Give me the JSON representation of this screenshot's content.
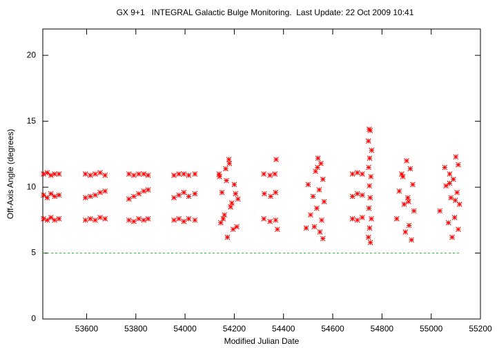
{
  "chart_data": {
    "type": "scatter",
    "title": "GX 9+1   INTEGRAL Galactic Bulge Monitoring.  Last Update: 22 Oct 2009 10:41",
    "x_label": "Modified Julian Date",
    "y_label": "Off-Axis Angle (degrees)",
    "xlim": [
      53422,
      55200
    ],
    "ylim": [
      0,
      22
    ],
    "xticks": [
      53600,
      53800,
      54000,
      54200,
      54400,
      54600,
      54800,
      55000,
      55200
    ],
    "yticks": [
      0,
      5,
      10,
      15,
      20
    ],
    "color": "#ff0000",
    "reference_line": {
      "y": 5,
      "color": "#00c000"
    },
    "x": [
      53425,
      53440,
      53455,
      53470,
      53488,
      53425,
      53440,
      53455,
      53470,
      53488,
      53425,
      53440,
      53455,
      53470,
      53488,
      53595,
      53615,
      53635,
      53655,
      53675,
      53595,
      53615,
      53635,
      53655,
      53675,
      53595,
      53615,
      53635,
      53655,
      53675,
      53772,
      53792,
      53812,
      53832,
      53850,
      53772,
      53792,
      53812,
      53832,
      53850,
      53772,
      53792,
      53812,
      53832,
      53850,
      53955,
      53975,
      53995,
      54015,
      54040,
      53955,
      53975,
      53995,
      54015,
      54040,
      53955,
      53975,
      53995,
      54015,
      54040,
      54178,
      54165,
      54140,
      54200,
      54150,
      54215,
      54185,
      54160,
      54145,
      54195,
      54172,
      54138,
      54205,
      54155,
      54190,
      54168,
      54210,
      54180,
      54370,
      54320,
      54345,
      54365,
      54322,
      54348,
      54368,
      54320,
      54345,
      54368,
      54375,
      54540,
      54552,
      54530,
      54560,
      54500,
      54545,
      54520,
      54565,
      54535,
      54510,
      54555,
      54525,
      54548,
      54492,
      54560,
      54538,
      54680,
      54700,
      54720,
      54680,
      54700,
      54720,
      54680,
      54700,
      54720,
      54748,
      54752,
      54745,
      54758,
      54750,
      54746,
      54755,
      54749,
      54752,
      54747,
      54757,
      54750,
      54745,
      54753,
      54900,
      54915,
      54885,
      54925,
      54870,
      54905,
      54890,
      54930,
      54860,
      54910,
      54895,
      54920,
      54880,
      54908,
      55100,
      55110,
      55075,
      55090,
      55060,
      55105,
      55080,
      55115,
      55035,
      55095,
      55070,
      55110,
      55085,
      55055,
      55098,
      55075
    ],
    "values": [
      11.0,
      11.1,
      10.9,
      11.0,
      11.0,
      9.4,
      9.2,
      9.5,
      9.3,
      9.4,
      7.6,
      7.5,
      7.7,
      7.5,
      7.6,
      11.0,
      10.9,
      11.0,
      11.1,
      10.9,
      9.2,
      9.3,
      9.4,
      9.6,
      9.7,
      7.5,
      7.6,
      7.5,
      7.7,
      7.6,
      11.0,
      10.9,
      11.0,
      11.0,
      10.9,
      9.1,
      9.3,
      9.5,
      9.7,
      9.8,
      7.5,
      7.4,
      7.6,
      7.5,
      7.6,
      10.9,
      11.0,
      11.0,
      10.9,
      11.0,
      9.2,
      9.4,
      9.6,
      9.3,
      9.5,
      7.5,
      7.6,
      7.4,
      7.6,
      7.5,
      12.1,
      11.4,
      10.8,
      10.2,
      9.6,
      9.1,
      8.5,
      7.9,
      7.3,
      6.8,
      6.2,
      11.0,
      9.5,
      7.6,
      8.8,
      10.5,
      7.0,
      11.8,
      12.1,
      11.0,
      10.9,
      11.0,
      9.5,
      9.3,
      9.6,
      7.6,
      7.4,
      7.5,
      6.8,
      12.2,
      11.8,
      11.2,
      10.6,
      10.2,
      9.8,
      9.3,
      8.9,
      8.4,
      7.9,
      7.5,
      7.0,
      6.6,
      6.9,
      6.1,
      11.5,
      11.0,
      11.1,
      11.0,
      9.3,
      9.5,
      9.4,
      7.6,
      7.5,
      7.7,
      14.4,
      14.3,
      13.5,
      12.8,
      12.2,
      11.5,
      10.8,
      10.1,
      9.2,
      8.4,
      7.6,
      6.9,
      6.2,
      5.8,
      12.0,
      11.4,
      10.8,
      10.2,
      9.7,
      9.2,
      8.7,
      8.2,
      7.6,
      7.1,
      6.6,
      6.0,
      11.0,
      8.9,
      12.3,
      11.7,
      11.0,
      10.6,
      10.1,
      9.6,
      9.2,
      8.7,
      8.2,
      7.7,
      7.3,
      6.8,
      6.2,
      11.5,
      9.0,
      10.3
    ]
  }
}
